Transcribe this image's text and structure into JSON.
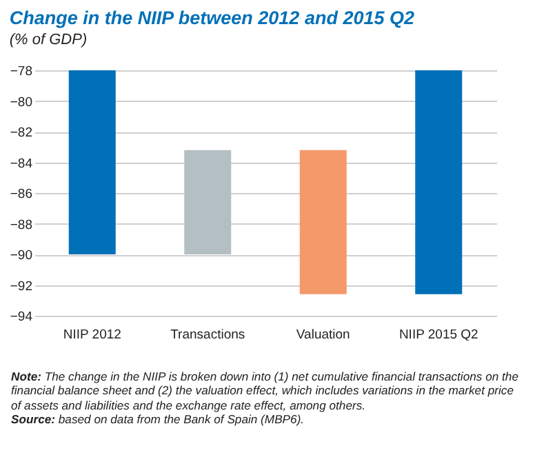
{
  "chart_data": {
    "type": "bar",
    "title": "Change in the NIIP between 2012 and 2015 Q2",
    "subtitle": "(% of GDP)",
    "categories": [
      "NIIP 2012",
      "Transactions",
      "Valuation",
      "NIIP 2015 Q2"
    ],
    "values": [
      -12,
      6.8,
      -9.4,
      -14.6
    ],
    "base": [
      -78,
      -90,
      -83.2,
      -78
    ],
    "colors": [
      "#0070b8",
      "#b3bfc3",
      "#f4996a",
      "#0070b8"
    ],
    "ylim": [
      -94,
      -78
    ],
    "yticks": [
      -94,
      -92,
      -90,
      -88,
      -86,
      -84,
      -82,
      -80,
      -78
    ],
    "grid": "y",
    "annotations": [
      "Note: The change in the NIIP is broken down into (1) net cumulative financial transactions on the financial balance sheet and (2) the valuation effect, which includes variations in the market price of assets and liabilities and the exchange rate effect, among others.",
      "Source: based on data from the Bank of Spain (MBP6)."
    ]
  }
}
